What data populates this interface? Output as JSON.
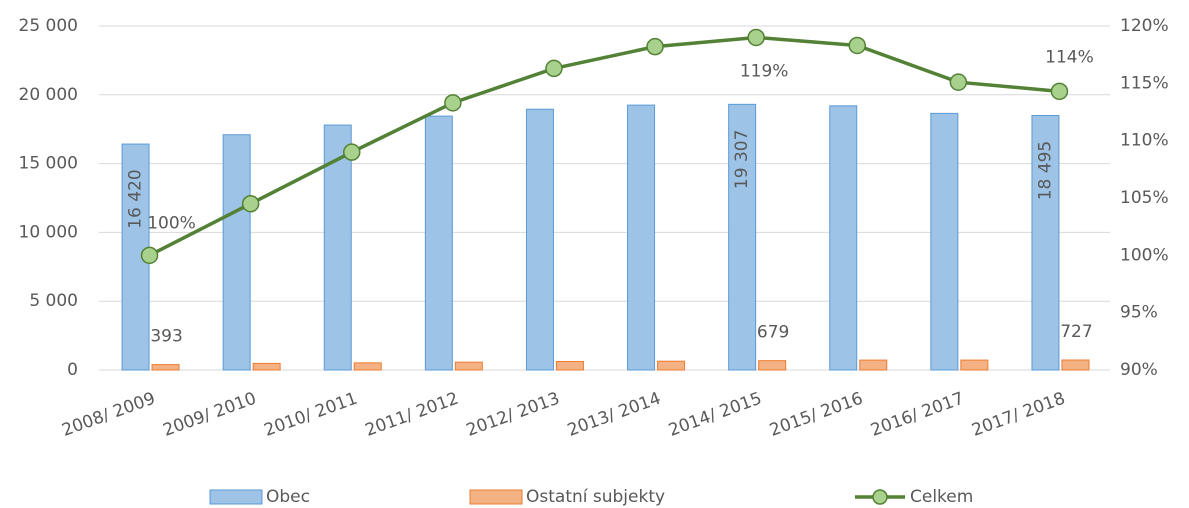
{
  "chart_data": {
    "type": "bar",
    "categories": [
      "2008/ 2009",
      "2009/ 2010",
      "2010/ 2011",
      "2011/ 2012",
      "2012/ 2013",
      "2013/ 2014",
      "2014/ 2015",
      "2015/ 2016",
      "2016/ 2017",
      "2017/ 2018"
    ],
    "series": [
      {
        "name": "Obec",
        "type": "bar",
        "color": "#9dc3e6",
        "stroke": "#5b9bd5",
        "values": [
          16420,
          17100,
          17800,
          18450,
          18950,
          19250,
          19307,
          19200,
          18650,
          18495
        ],
        "value_labels": [
          "16 420",
          null,
          null,
          null,
          null,
          null,
          "19 307",
          null,
          null,
          "18 495"
        ]
      },
      {
        "name": "Ostatní subjekty",
        "type": "bar",
        "color": "#f4b183",
        "stroke": "#ed7d31",
        "values": [
          393,
          480,
          520,
          570,
          620,
          640,
          679,
          720,
          720,
          727
        ],
        "value_labels": [
          "393",
          null,
          null,
          null,
          null,
          null,
          "679",
          null,
          null,
          "727"
        ]
      },
      {
        "name": "Celkem",
        "type": "line",
        "axis": "y2",
        "color": "#538135",
        "marker_color": "#a9d18e",
        "values": [
          100,
          104.5,
          109.0,
          113.3,
          116.3,
          118.2,
          119.0,
          118.3,
          115.1,
          114.3
        ],
        "value_labels": [
          "100%",
          null,
          null,
          null,
          null,
          null,
          "119%",
          null,
          null,
          "114%"
        ]
      }
    ],
    "ylim": [
      0,
      25000
    ],
    "yticks": [
      {
        "value": 0,
        "label": "0"
      },
      {
        "value": 5000,
        "label": "5 000"
      },
      {
        "value": 10000,
        "label": "10 000"
      },
      {
        "value": 15000,
        "label": "15 000"
      },
      {
        "value": 20000,
        "label": "20 000"
      },
      {
        "value": 25000,
        "label": "25 000"
      }
    ],
    "y2lim": [
      90,
      120
    ],
    "y2ticks": [
      {
        "value": 90,
        "label": "90%"
      },
      {
        "value": 95,
        "label": "95%"
      },
      {
        "value": 100,
        "label": "100%"
      },
      {
        "value": 105,
        "label": "105%"
      },
      {
        "value": 110,
        "label": "110%"
      },
      {
        "value": 115,
        "label": "115%"
      },
      {
        "value": 120,
        "label": "120%"
      }
    ],
    "grid": true,
    "legend": "bottom"
  }
}
